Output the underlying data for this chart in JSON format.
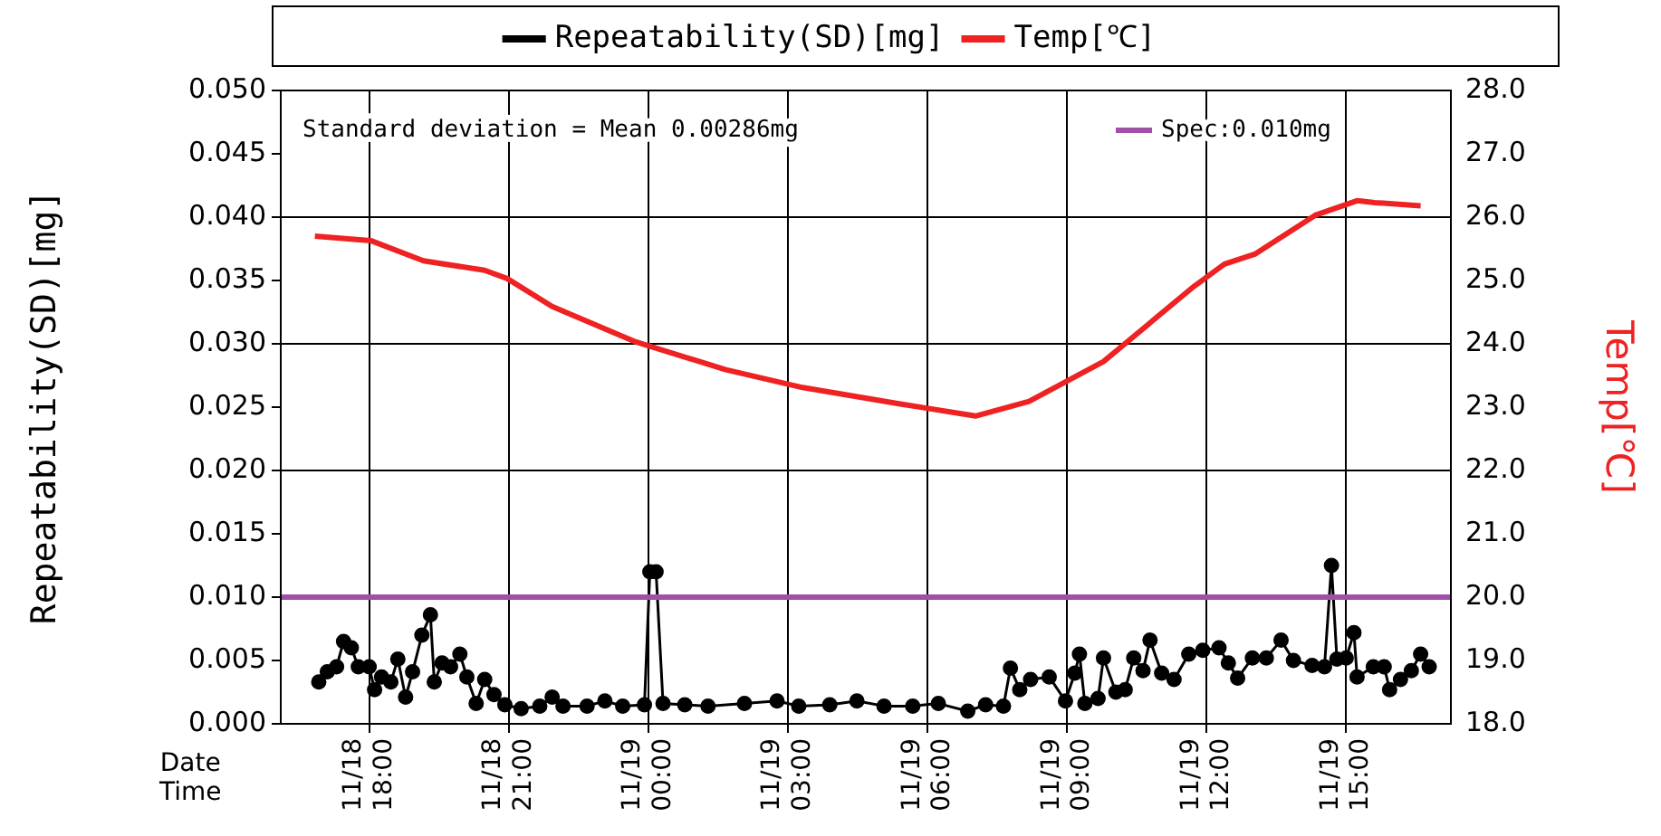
{
  "chart_data": {
    "type": "line",
    "xlabel": "Date Time",
    "ylabel": "Repeatability(SD)[mg]",
    "y2label": "Temp[℃]",
    "xlim": [
      "--11-18T16:06",
      "--11-19T17:15"
    ],
    "xticks": [
      {
        "value": "--11-18T18:00",
        "label": "11/18\n18:00"
      },
      {
        "value": "--11-18T21:00",
        "label": "11/18\n21:00"
      },
      {
        "value": "--11-19T00:00",
        "label": "11/19\n00:00"
      },
      {
        "value": "--11-19T03:00",
        "label": "11/19\n03:00"
      },
      {
        "value": "--11-19T06:00",
        "label": "11/19\n06:00"
      },
      {
        "value": "--11-19T09:00",
        "label": "11/19\n09:00"
      },
      {
        "value": "--11-19T12:00",
        "label": "11/19\n12:00"
      },
      {
        "value": "--11-19T15:00",
        "label": "11/19\n15:00"
      }
    ],
    "ylim": [
      0,
      0.05
    ],
    "yticks": [
      {
        "value": 0,
        "label": "0.000"
      },
      {
        "value": 0.005,
        "label": "0.005"
      },
      {
        "value": 0.01,
        "label": "0.010"
      },
      {
        "value": 0.015,
        "label": "0.015"
      },
      {
        "value": 0.02,
        "label": "0.020"
      },
      {
        "value": 0.025,
        "label": "0.025"
      },
      {
        "value": 0.03,
        "label": "0.030"
      },
      {
        "value": 0.035,
        "label": "0.035"
      },
      {
        "value": 0.04,
        "label": "0.040"
      },
      {
        "value": 0.045,
        "label": "0.045"
      },
      {
        "value": 0.05,
        "label": "0.050"
      }
    ],
    "y2lim": [
      18,
      28
    ],
    "y2ticks": [
      {
        "value": 18,
        "label": "18.0"
      },
      {
        "value": 19,
        "label": "19.0"
      },
      {
        "value": 20,
        "label": "20.0"
      },
      {
        "value": 21,
        "label": "21.0"
      },
      {
        "value": 22,
        "label": "22.0"
      },
      {
        "value": 23,
        "label": "23.0"
      },
      {
        "value": 24,
        "label": "24.0"
      },
      {
        "value": 25,
        "label": "25.0"
      },
      {
        "value": 26,
        "label": "26.0"
      },
      {
        "value": 27,
        "label": "27.0"
      },
      {
        "value": 28,
        "label": "28.0"
      }
    ],
    "grid": true,
    "legend": "top",
    "series": [
      {
        "name": "Repeatability(SD)[mg]",
        "color": "#000000",
        "marker": "circle",
        "x": [
          "--11-18T16:55",
          "--11-18T17:06",
          "--11-18T17:18",
          "--11-18T17:27",
          "--11-18T17:37",
          "--11-18T17:46",
          "--11-18T18:00",
          "--11-18T18:07",
          "--11-18T18:16",
          "--11-18T18:28",
          "--11-18T18:37",
          "--11-18T18:47",
          "--11-18T18:56",
          "--11-18T19:08",
          "--11-18T19:19",
          "--11-18T19:24",
          "--11-18T19:34",
          "--11-18T19:45",
          "--11-18T19:57",
          "--11-18T20:06",
          "--11-18T20:18",
          "--11-18T20:29",
          "--11-18T20:41",
          "--11-18T20:55",
          "--11-18T21:16",
          "--11-18T21:40",
          "--11-18T21:56",
          "--11-18T22:10",
          "--11-18T22:41",
          "--11-18T23:04",
          "--11-18T23:27",
          "--11-18T23:55",
          "--11-19T00:02",
          "--11-19T00:10",
          "--11-19T00:19",
          "--11-19T00:47",
          "--11-19T01:17",
          "--11-19T02:04",
          "--11-19T02:46",
          "--11-19T03:14",
          "--11-19T03:54",
          "--11-19T04:29",
          "--11-19T05:04",
          "--11-19T05:41",
          "--11-19T06:14",
          "--11-19T06:52",
          "--11-19T07:15",
          "--11-19T07:38",
          "--11-19T07:47",
          "--11-19T07:59",
          "--11-19T08:13",
          "--11-19T08:37",
          "--11-19T08:58",
          "--11-19T09:10",
          "--11-19T09:16",
          "--11-19T09:23",
          "--11-19T09:40",
          "--11-19T09:47",
          "--11-19T10:03",
          "--11-19T10:15",
          "--11-19T10:26",
          "--11-19T10:38",
          "--11-19T10:47",
          "--11-19T11:02",
          "--11-19T11:18",
          "--11-19T11:37",
          "--11-19T11:55",
          "--11-19T12:16",
          "--11-19T12:28",
          "--11-19T12:40",
          "--11-19T12:59",
          "--11-19T13:17",
          "--11-19T13:36",
          "--11-19T13:52",
          "--11-19T14:16",
          "--11-19T14:32",
          "--11-19T14:41",
          "--11-19T14:48",
          "--11-19T15:00",
          "--11-19T15:10",
          "--11-19T15:14",
          "--11-19T15:35",
          "--11-19T15:49",
          "--11-19T15:56",
          "--11-19T16:10",
          "--11-19T16:24",
          "--11-19T16:36",
          "--11-19T16:47"
        ],
        "values": [
          0.0033,
          0.0041,
          0.0045,
          0.0065,
          0.006,
          0.0045,
          0.0045,
          0.0027,
          0.0037,
          0.0033,
          0.0051,
          0.0021,
          0.0041,
          0.007,
          0.0086,
          0.0033,
          0.0048,
          0.0045,
          0.0055,
          0.0037,
          0.0016,
          0.0035,
          0.0023,
          0.0015,
          0.0012,
          0.0014,
          0.0021,
          0.0014,
          0.0014,
          0.0018,
          0.0014,
          0.0015,
          0.012,
          0.012,
          0.0016,
          0.0015,
          0.0014,
          0.0016,
          0.0018,
          0.0014,
          0.0015,
          0.0018,
          0.0014,
          0.0014,
          0.0016,
          0.001,
          0.0015,
          0.0014,
          0.0044,
          0.0027,
          0.0035,
          0.0037,
          0.0018,
          0.004,
          0.0055,
          0.0016,
          0.002,
          0.0052,
          0.0025,
          0.0027,
          0.0052,
          0.0042,
          0.0066,
          0.004,
          0.0035,
          0.0055,
          0.0058,
          0.006,
          0.0048,
          0.0036,
          0.0052,
          0.0052,
          0.0066,
          0.005,
          0.0046,
          0.0045,
          0.0125,
          0.0051,
          0.0052,
          0.0072,
          0.0037,
          0.0045,
          0.0045,
          0.0027,
          0.0035,
          0.0042,
          0.0055,
          0.0045
        ]
      },
      {
        "name": "Temp[℃]",
        "color": "#ee2222",
        "marker": "none",
        "axis": "y2",
        "x": [
          "--11-18T16:50",
          "--11-18T18:02",
          "--11-18T19:10",
          "--11-18T20:29",
          "--11-18T20:58",
          "--11-18T21:56",
          "--11-18T23:44",
          "--11-19T01:40",
          "--11-19T03:19",
          "--11-19T05:25",
          "--11-19T07:02",
          "--11-19T08:11",
          "--11-19T09:47",
          "--11-19T11:44",
          "--11-19T12:23",
          "--11-19T13:03",
          "--11-19T14:20",
          "--11-19T15:14",
          "--11-19T15:37",
          "--11-19T16:36"
        ],
        "values": [
          25.7,
          25.63,
          25.31,
          25.16,
          25.03,
          24.59,
          24.03,
          23.59,
          23.31,
          23.05,
          22.86,
          23.09,
          23.72,
          24.91,
          25.26,
          25.42,
          26.03,
          26.26,
          26.23,
          26.18
        ]
      }
    ],
    "ref_lines": [
      {
        "axis": "y",
        "value": 0.01,
        "label": "Spec:0.010mg",
        "color": "#a050a8"
      }
    ],
    "annotations": [
      "Standard deviation = Mean 0.00286mg"
    ]
  }
}
